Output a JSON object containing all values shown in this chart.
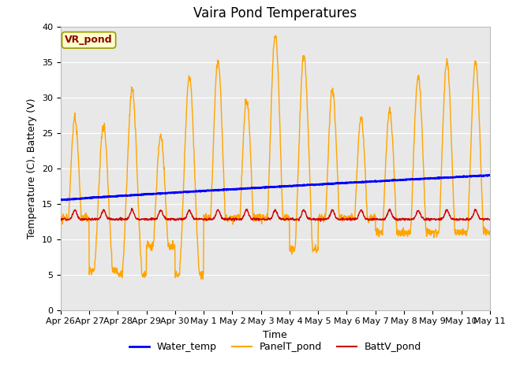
{
  "title": "Vaira Pond Temperatures",
  "xlabel": "Time",
  "ylabel": "Temperature (C), Battery (V)",
  "ylim": [
    0,
    40
  ],
  "yticks": [
    0,
    5,
    10,
    15,
    20,
    25,
    30,
    35,
    40
  ],
  "x_tick_labels": [
    "Apr 26",
    "Apr 27",
    "Apr 28",
    "Apr 29",
    "Apr 30",
    "May 1",
    "May 2",
    "May 3",
    "May 4",
    "May 5",
    "May 6",
    "May 7",
    "May 8",
    "May 9",
    "May 10",
    "May 11"
  ],
  "background_color": "#e8e8e8",
  "title_fontsize": 12,
  "axis_label_fontsize": 9,
  "tick_fontsize": 8,
  "legend_fontsize": 9,
  "water_color": "#0000ff",
  "panel_color": "#ffa500",
  "batt_color": "#cc0000",
  "annotation_text": "VR_pond",
  "annotation_bg": "#ffffcc",
  "annotation_border": "#999900"
}
